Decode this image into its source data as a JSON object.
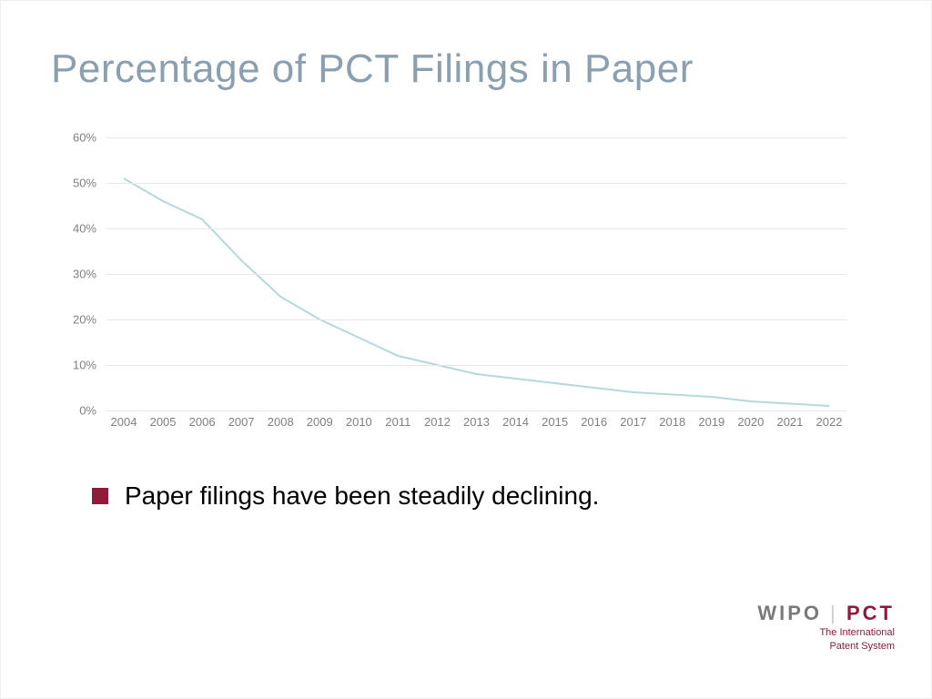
{
  "title": {
    "text": "Percentage of PCT Filings in Paper",
    "color": "#8aa0b0",
    "fontsize": 44
  },
  "chart": {
    "type": "line",
    "years": [
      2004,
      2005,
      2006,
      2007,
      2008,
      2009,
      2010,
      2011,
      2012,
      2013,
      2014,
      2015,
      2016,
      2017,
      2018,
      2019,
      2020,
      2021,
      2022
    ],
    "values": [
      51,
      46,
      42,
      33,
      25,
      20,
      16,
      12,
      10,
      8,
      7,
      6,
      5,
      4,
      3.5,
      3,
      2,
      1.5,
      1
    ],
    "ylim": [
      0,
      60
    ],
    "ytick_step": 10,
    "ytick_labels": [
      "0%",
      "10%",
      "20%",
      "30%",
      "40%",
      "50%",
      "60%"
    ],
    "grid_color": "#e8e8e8",
    "axis_line_color": "#e8e8e8",
    "line_color": "#b3d9d9",
    "line_width": 2,
    "label_color": "#808080",
    "label_fontsize": 13,
    "background_color": "#ffffff"
  },
  "bullet": {
    "marker_color": "#8f1a3a",
    "text": "Paper filings have been steadily declining.",
    "text_color": "#000000",
    "fontsize": 28
  },
  "footer": {
    "wipo": "WIPO",
    "bar": "|",
    "pct": "PCT",
    "sub1": "The International",
    "sub2": "Patent System",
    "wipo_color": "#7a7a7a",
    "pct_color": "#8f1a3a"
  }
}
